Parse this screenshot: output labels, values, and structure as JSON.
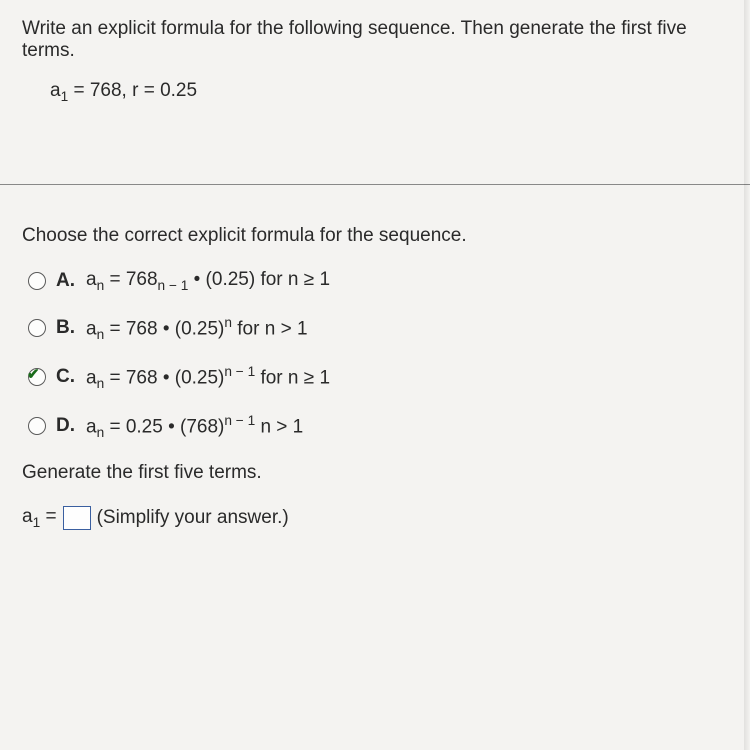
{
  "prompt": "Write an explicit formula for the following sequence. Then generate the first five terms.",
  "given_html": "a<sub>1</sub> = 768, r = 0.25",
  "choose": "Choose the correct explicit formula for the sequence.",
  "options": [
    {
      "letter": "A.",
      "html": "a<sub>n</sub> = 768<sub>n − 1</sub> • (0.25) for n ≥ 1",
      "checked": false
    },
    {
      "letter": "B.",
      "html": "a<sub>n</sub> = 768 • (0.25)<sup>n</sup>  for n > 1",
      "checked": false
    },
    {
      "letter": "C.",
      "html": "a<sub>n</sub> = 768 • (0.25)<sup>n − 1</sup>  for n ≥ 1",
      "checked": true
    },
    {
      "letter": "D.",
      "html": "a<sub>n</sub> = 0.25 • (768)<sup>n − 1</sup>  n > 1",
      "checked": false
    }
  ],
  "generate": "Generate the first five terms.",
  "answer_prefix_html": "a<sub>1</sub> = ",
  "answer_suffix": "(Simplify your answer.)",
  "colors": {
    "page_bg": "#f4f3f1",
    "text": "#2a2a2a",
    "divider": "#888888",
    "radio_border": "#5a5a5a",
    "check_color": "#1a6b1a",
    "box_border": "#3a5fa0"
  }
}
